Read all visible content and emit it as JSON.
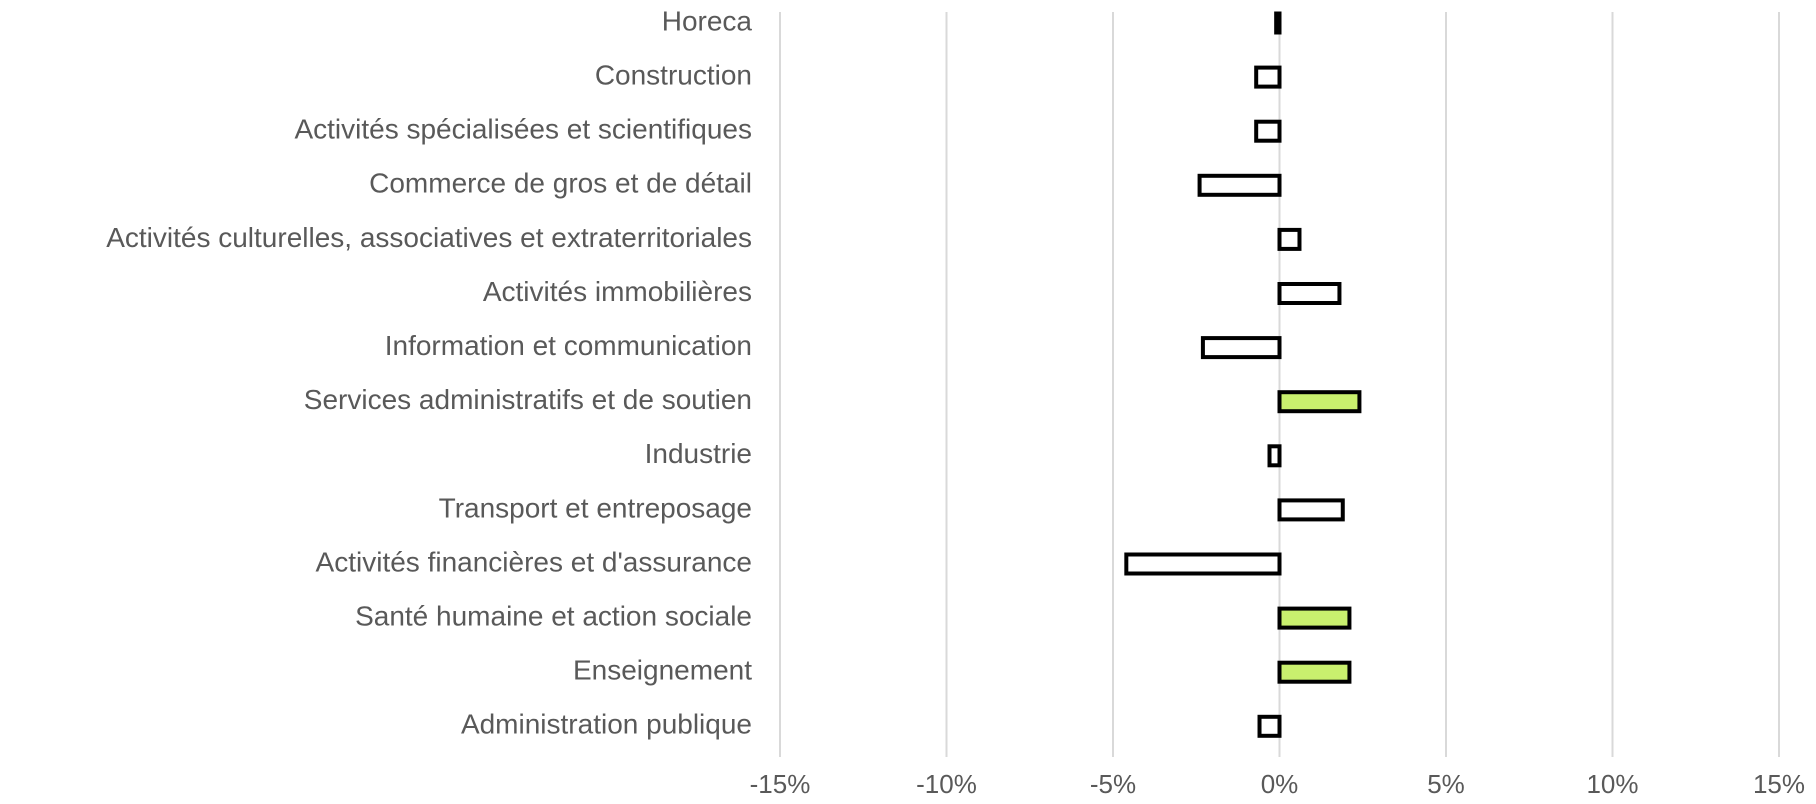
{
  "chart_data": {
    "type": "bar",
    "orientation": "horizontal",
    "categories": [
      "Horeca",
      "Construction",
      "Activités spécialisées et scientifiques",
      "Commerce de gros et de détail",
      "Activités culturelles, associatives et extraterritoriales",
      "Activités immobilières",
      "Information et communication",
      "Services administratifs et de soutien",
      "Industrie",
      "Transport et entreposage",
      "Activités financières et d'assurance",
      "Santé humaine et action sociale",
      "Enseignement",
      "Administration publique"
    ],
    "values": [
      -0.1,
      -0.7,
      -0.7,
      -2.4,
      0.6,
      1.8,
      -2.3,
      2.4,
      -0.3,
      1.9,
      -4.6,
      2.1,
      2.1,
      -0.6
    ],
    "colors": [
      "#ffffff",
      "#ffffff",
      "#ffffff",
      "#ffffff",
      "#ffffff",
      "#ffffff",
      "#ffffff",
      "#c9f06e",
      "#ffffff",
      "#ffffff",
      "#ffffff",
      "#c9f06e",
      "#c9f06e",
      "#ffffff"
    ],
    "xlim": [
      -15,
      15
    ],
    "xticks": [
      {
        "value": -15,
        "label": "-15%"
      },
      {
        "value": -10,
        "label": "-10%"
      },
      {
        "value": -5,
        "label": "-5%"
      },
      {
        "value": 0,
        "label": "0%"
      },
      {
        "value": 5,
        "label": "5%"
      },
      {
        "value": 10,
        "label": "10%"
      },
      {
        "value": 15,
        "label": "15%"
      }
    ],
    "grid": true
  }
}
